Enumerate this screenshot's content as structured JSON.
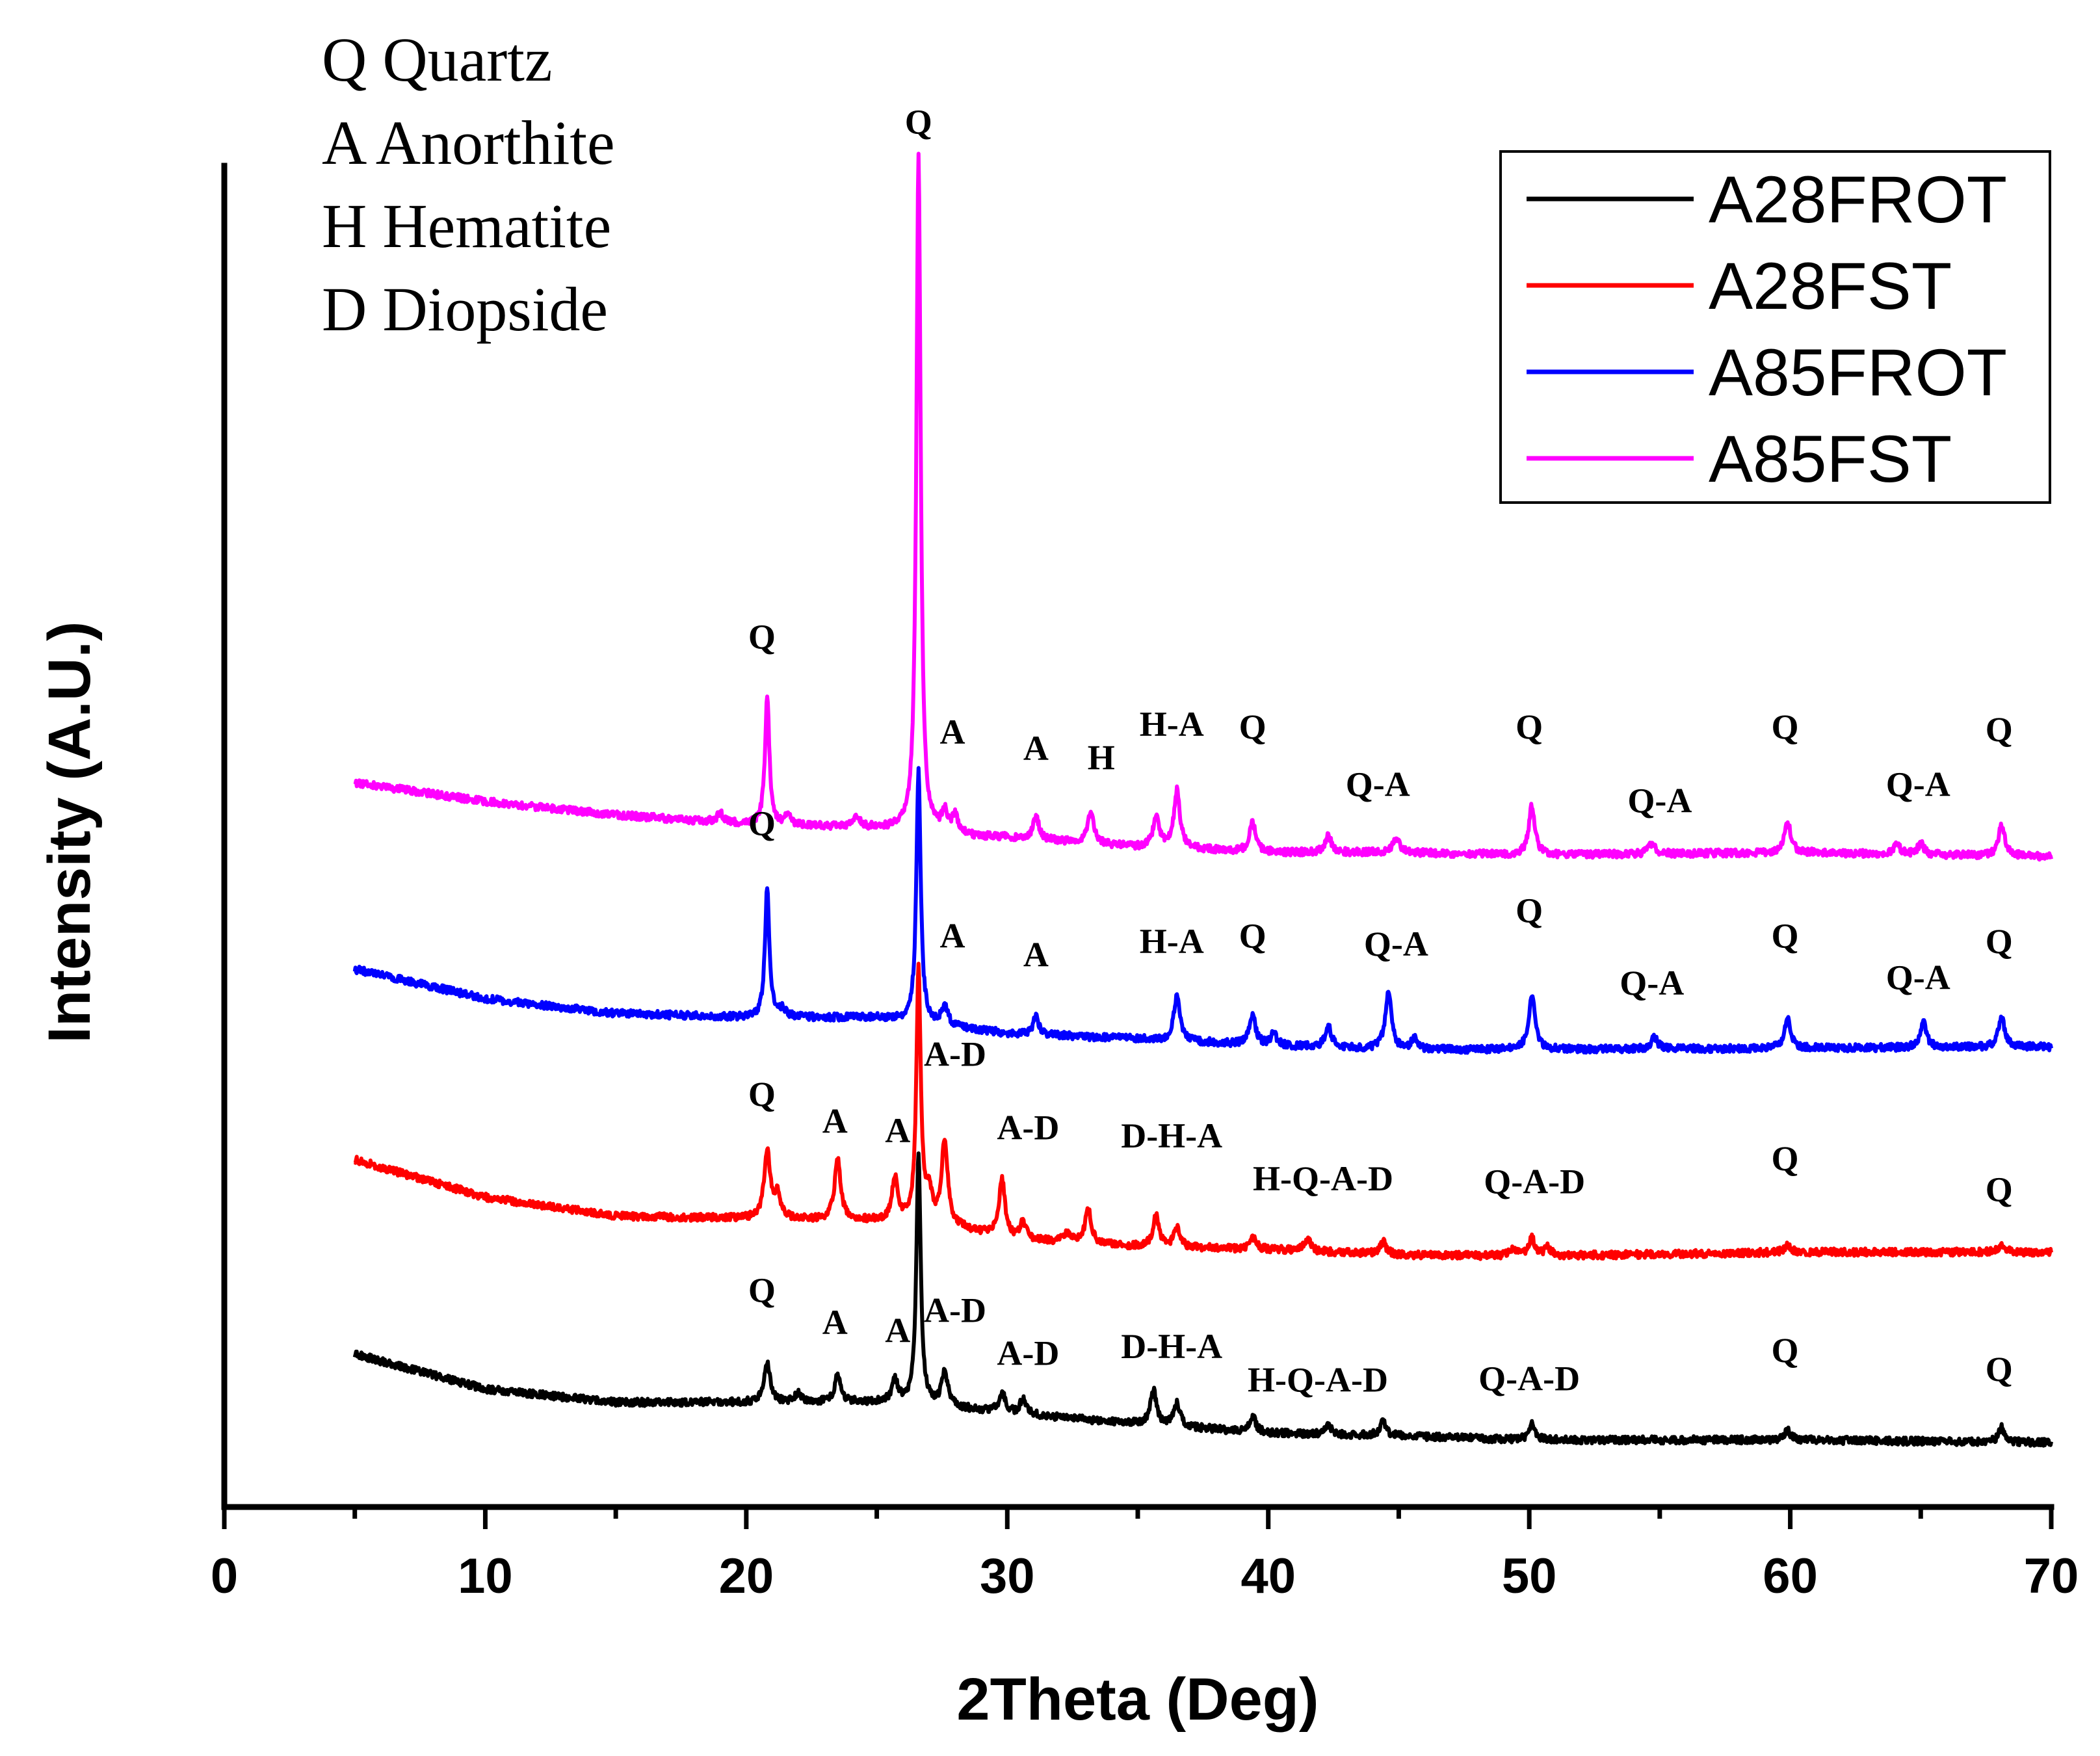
{
  "phase_key": [
    {
      "code": "Q",
      "name": "Quartz",
      "text": "Q Quartz"
    },
    {
      "code": "A",
      "name": "Anorthite",
      "text": "A Anorthite"
    },
    {
      "code": "H",
      "name": "Hematite",
      "text": "H Hematite"
    },
    {
      "code": "D",
      "name": "Diopside",
      "text": "D Diopside"
    }
  ],
  "chart_data": {
    "type": "line",
    "title": "",
    "xlabel": "2Theta (Deg)",
    "ylabel": "Intensity (A.U.)",
    "xlim": [
      0,
      70
    ],
    "ylim": [
      0,
      100
    ],
    "xticks": [
      0,
      10,
      20,
      30,
      40,
      50,
      60,
      70
    ],
    "y_ticks_shown": false,
    "grid": false,
    "legend_position": "top-right",
    "series": [
      {
        "name": "A28FROT",
        "color": "#000000",
        "baseline": [
          [
            5,
            11.4
          ],
          [
            10,
            8.8
          ],
          [
            15,
            7.8
          ],
          [
            20,
            7.8
          ],
          [
            25,
            7.8
          ],
          [
            28,
            7.4
          ],
          [
            30,
            7.0
          ],
          [
            35,
            6.2
          ],
          [
            40,
            5.5
          ],
          [
            45,
            5.3
          ],
          [
            50,
            5.0
          ],
          [
            60,
            5.0
          ],
          [
            70,
            4.8
          ]
        ],
        "peaks": [
          [
            20.8,
            3.0
          ],
          [
            22.0,
            0.7
          ],
          [
            23.5,
            2.0
          ],
          [
            25.7,
            1.7
          ],
          [
            26.6,
            18.8
          ],
          [
            27.6,
            2.6
          ],
          [
            29.8,
            1.5
          ],
          [
            30.6,
            1.1
          ],
          [
            35.6,
            2.6
          ],
          [
            36.5,
            1.7
          ],
          [
            39.4,
            1.2
          ],
          [
            42.3,
            0.7
          ],
          [
            44.4,
            1.0
          ],
          [
            50.1,
            1.2
          ],
          [
            59.9,
            0.7
          ],
          [
            68.1,
            1.1
          ]
        ],
        "labels": [
          {
            "text": "Q",
            "x": 20.6,
            "y": 15.3
          },
          {
            "text": "A",
            "x": 23.4,
            "y": 12.9
          },
          {
            "text": "A",
            "x": 25.8,
            "y": 12.3
          },
          {
            "text": "A-D",
            "x": 28.0,
            "y": 13.8
          },
          {
            "text": "A-D",
            "x": 30.8,
            "y": 10.6
          },
          {
            "text": "D-H-A",
            "x": 36.3,
            "y": 11.1
          },
          {
            "text": "H-Q-A-D",
            "x": 41.9,
            "y": 8.6
          },
          {
            "text": "Q-A-D",
            "x": 50.0,
            "y": 8.7
          },
          {
            "text": "Q",
            "x": 59.8,
            "y": 10.8
          },
          {
            "text": "Q",
            "x": 68.0,
            "y": 9.4
          }
        ]
      },
      {
        "name": "A28FST",
        "color": "#ff0000",
        "baseline": [
          [
            5,
            25.9
          ],
          [
            10,
            23.1
          ],
          [
            15,
            21.7
          ],
          [
            20,
            21.5
          ],
          [
            25,
            21.3
          ],
          [
            28,
            20.8
          ],
          [
            30,
            20.0
          ],
          [
            35,
            19.4
          ],
          [
            40,
            19.2
          ],
          [
            45,
            18.8
          ],
          [
            50,
            18.7
          ],
          [
            60,
            19.0
          ],
          [
            70,
            19.0
          ]
        ],
        "peaks": [
          [
            20.8,
            5.1
          ],
          [
            21.2,
            1.8
          ],
          [
            23.5,
            4.6
          ],
          [
            25.7,
            3.3
          ],
          [
            26.6,
            19.0
          ],
          [
            27.0,
            2.2
          ],
          [
            27.6,
            6.4
          ],
          [
            29.8,
            4.3
          ],
          [
            30.6,
            1.2
          ],
          [
            32.3,
            0.7
          ],
          [
            33.1,
            2.6
          ],
          [
            35.7,
            2.4
          ],
          [
            36.5,
            1.4
          ],
          [
            39.4,
            0.9
          ],
          [
            41.5,
            0.9
          ],
          [
            44.4,
            0.9
          ],
          [
            49.4,
            0.6
          ],
          [
            50.1,
            1.3
          ],
          [
            50.7,
            0.6
          ],
          [
            59.9,
            0.6
          ],
          [
            68.1,
            0.6
          ]
        ],
        "labels": [
          {
            "text": "Q",
            "x": 20.6,
            "y": 29.9
          },
          {
            "text": "A",
            "x": 23.4,
            "y": 27.9
          },
          {
            "text": "A",
            "x": 25.8,
            "y": 27.2
          },
          {
            "text": "A-D",
            "x": 28.0,
            "y": 32.9
          },
          {
            "text": "A-D",
            "x": 30.8,
            "y": 27.4
          },
          {
            "text": "D-H-A",
            "x": 36.3,
            "y": 26.8
          },
          {
            "text": "H-Q-A-D",
            "x": 42.1,
            "y": 23.6
          },
          {
            "text": "Q-A-D",
            "x": 50.2,
            "y": 23.4
          },
          {
            "text": "Q",
            "x": 59.8,
            "y": 25.1
          },
          {
            "text": "Q",
            "x": 68.0,
            "y": 22.8
          }
        ]
      },
      {
        "name": "A85FROT",
        "color": "#0000ff",
        "baseline": [
          [
            5,
            40.1
          ],
          [
            10,
            37.9
          ],
          [
            15,
            36.8
          ],
          [
            20,
            36.5
          ],
          [
            25,
            36.5
          ],
          [
            28,
            35.8
          ],
          [
            30,
            35.3
          ],
          [
            35,
            34.9
          ],
          [
            40,
            34.4
          ],
          [
            45,
            34.1
          ],
          [
            50,
            34.1
          ],
          [
            60,
            34.2
          ],
          [
            70,
            34.3
          ]
        ],
        "peaks": [
          [
            20.8,
            9.7
          ],
          [
            21.4,
            0.6
          ],
          [
            26.6,
            18.8
          ],
          [
            27.6,
            1.4
          ],
          [
            31.1,
            1.3
          ],
          [
            36.5,
            3.4
          ],
          [
            39.4,
            2.2
          ],
          [
            40.2,
            0.9
          ],
          [
            42.3,
            1.6
          ],
          [
            44.6,
            4.3
          ],
          [
            45.6,
            0.8
          ],
          [
            50.1,
            4.2
          ],
          [
            54.8,
            0.9
          ],
          [
            59.9,
            2.3
          ],
          [
            65.1,
            1.9
          ],
          [
            68.1,
            2.3
          ]
        ],
        "labels": [
          {
            "text": "Q",
            "x": 20.6,
            "y": 50.1
          },
          {
            "text": "A",
            "x": 27.9,
            "y": 41.7
          },
          {
            "text": "A",
            "x": 31.1,
            "y": 40.3
          },
          {
            "text": "H-A",
            "x": 36.3,
            "y": 41.3
          },
          {
            "text": "Q",
            "x": 39.4,
            "y": 41.7
          },
          {
            "text": "Q-A",
            "x": 44.9,
            "y": 41.1
          },
          {
            "text": "Q",
            "x": 50.0,
            "y": 43.6
          },
          {
            "text": "Q-A",
            "x": 54.7,
            "y": 38.2
          },
          {
            "text": "Q",
            "x": 59.8,
            "y": 41.7
          },
          {
            "text": "Q-A",
            "x": 64.9,
            "y": 38.6
          },
          {
            "text": "Q",
            "x": 68.0,
            "y": 41.3
          }
        ]
      },
      {
        "name": "A85FST",
        "color": "#ff00ff",
        "baseline": [
          [
            5,
            54.0
          ],
          [
            10,
            52.6
          ],
          [
            15,
            51.6
          ],
          [
            20,
            50.9
          ],
          [
            25,
            50.6
          ],
          [
            28,
            50.0
          ],
          [
            30,
            49.9
          ],
          [
            35,
            49.2
          ],
          [
            40,
            48.8
          ],
          [
            45,
            48.8
          ],
          [
            50,
            48.6
          ],
          [
            60,
            48.8
          ],
          [
            70,
            48.5
          ]
        ],
        "peaks": [
          [
            19.0,
            0.7
          ],
          [
            20.8,
            9.6
          ],
          [
            21.6,
            0.7
          ],
          [
            24.2,
            0.9
          ],
          [
            26.6,
            50.3
          ],
          [
            27.6,
            1.5
          ],
          [
            28.0,
            1.4
          ],
          [
            31.1,
            1.7
          ],
          [
            33.2,
            2.4
          ],
          [
            35.7,
            2.3
          ],
          [
            36.5,
            4.3
          ],
          [
            39.4,
            2.2
          ],
          [
            42.3,
            1.2
          ],
          [
            44.9,
            1.1
          ],
          [
            50.1,
            3.7
          ],
          [
            54.7,
            0.8
          ],
          [
            59.9,
            2.3
          ],
          [
            64.1,
            0.7
          ],
          [
            65.0,
            0.8
          ],
          [
            68.1,
            2.4
          ]
        ],
        "labels": [
          {
            "text": "Q",
            "x": 20.6,
            "y": 64.0
          },
          {
            "text": "Q",
            "x": 26.6,
            "y": 102.4
          },
          {
            "text": "A",
            "x": 27.9,
            "y": 56.9
          },
          {
            "text": "A",
            "x": 31.1,
            "y": 55.7
          },
          {
            "text": "H",
            "x": 33.6,
            "y": 55.0
          },
          {
            "text": "H-A",
            "x": 36.3,
            "y": 57.5
          },
          {
            "text": "Q",
            "x": 39.4,
            "y": 57.3
          },
          {
            "text": "Q-A",
            "x": 44.2,
            "y": 53.0
          },
          {
            "text": "Q",
            "x": 50.0,
            "y": 57.3
          },
          {
            "text": "Q-A",
            "x": 55.0,
            "y": 51.8
          },
          {
            "text": "Q",
            "x": 59.8,
            "y": 57.3
          },
          {
            "text": "Q-A",
            "x": 64.9,
            "y": 53.0
          },
          {
            "text": "Q",
            "x": 68.0,
            "y": 57.1
          }
        ]
      }
    ]
  }
}
